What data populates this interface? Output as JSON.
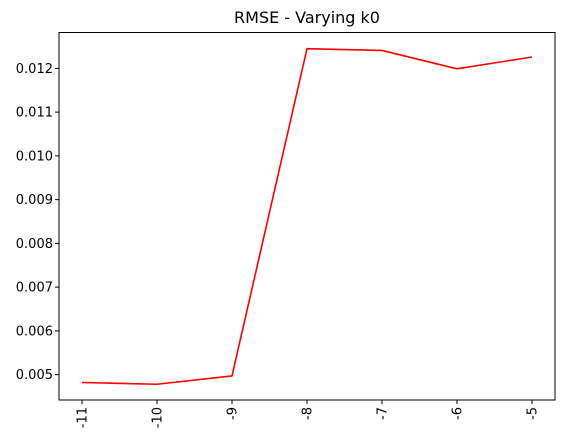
{
  "chart_data": {
    "type": "line",
    "title": "RMSE - Varying k0",
    "xlabel": "",
    "ylabel": "",
    "categories": [
      "-11",
      "-10",
      "-9",
      "-8",
      "-7",
      "-6",
      "-5"
    ],
    "series": [
      {
        "values": [
          0.00482,
          0.00478,
          0.00497,
          0.01245,
          0.01241,
          0.01199,
          0.01226
        ],
        "color": "#ff0000"
      }
    ],
    "ylim": [
      0.00442,
      0.01282
    ],
    "yticks": [
      0.005,
      0.006,
      0.007,
      0.008,
      0.009,
      0.01,
      0.011,
      0.012
    ],
    "ytick_labels": [
      "0.005",
      "0.006",
      "0.007",
      "0.008",
      "0.009",
      "0.010",
      "0.011",
      "0.012"
    ],
    "xtick_rotation": "vertical",
    "grid": false,
    "legend": "none"
  }
}
